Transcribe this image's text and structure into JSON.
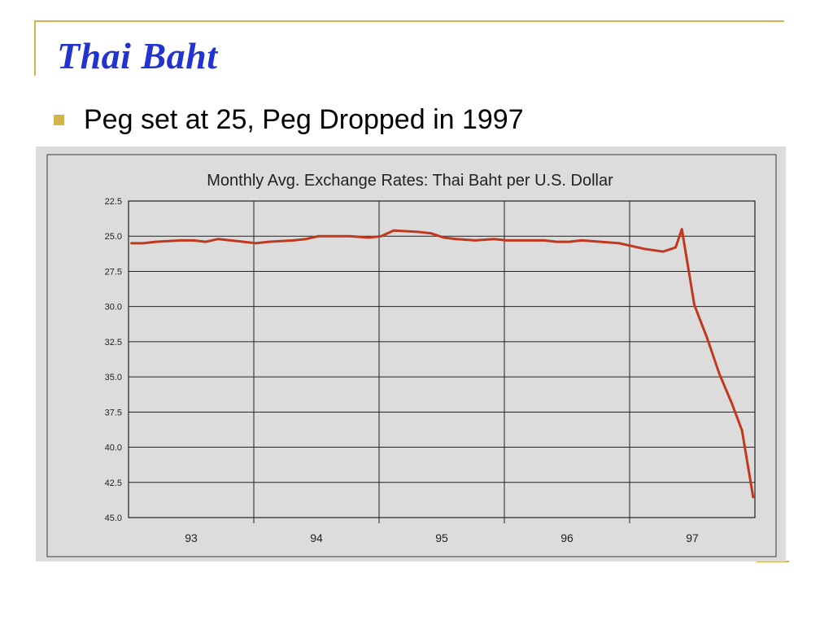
{
  "slide": {
    "title": "Thai Baht",
    "bullet": "Peg set at 25, Peg Dropped in 1997"
  },
  "colors": {
    "accent": "#d4b24c",
    "title": "#2233d0",
    "line": "#c0391e",
    "panel": "#dcdcdc"
  },
  "chart_data": {
    "type": "line",
    "title": "Monthly Avg. Exchange Rates: Thai Baht per U.S. Dollar",
    "xlabel": "",
    "ylabel": "",
    "y_ticks": [
      "22.5",
      "25.0",
      "27.5",
      "30.0",
      "32.5",
      "35.0",
      "37.5",
      "40.0",
      "42.5",
      "45.0"
    ],
    "y_inverted": true,
    "ylim": [
      22.5,
      45.0
    ],
    "x_ticks": [
      "93",
      "94",
      "95",
      "96",
      "97"
    ],
    "xlim": [
      1992.583,
      1997.583
    ],
    "grid": true,
    "series": [
      {
        "x": [
          1992.6,
          1992.7,
          1992.8,
          1993.0,
          1993.1,
          1993.2,
          1993.3,
          1993.5,
          1993.6,
          1993.7,
          1993.9,
          1994.0,
          1994.1,
          1994.2,
          1994.35,
          1994.5,
          1994.6,
          1994.7,
          1994.9,
          1995.0,
          1995.1,
          1995.2,
          1995.35,
          1995.5,
          1995.6,
          1995.7,
          1995.9,
          1996.0,
          1996.1,
          1996.2,
          1996.35,
          1996.5,
          1996.6,
          1996.7,
          1996.85,
          1996.95,
          1997.0,
          1997.1,
          1997.2,
          1997.3,
          1997.4,
          1997.48,
          1997.57
        ],
        "y": [
          25.5,
          25.5,
          25.4,
          25.3,
          25.3,
          25.4,
          25.2,
          25.4,
          25.5,
          25.4,
          25.3,
          25.2,
          25.0,
          25.0,
          25.0,
          25.1,
          25.0,
          24.6,
          24.7,
          24.8,
          25.1,
          25.2,
          25.3,
          25.2,
          25.3,
          25.3,
          25.3,
          25.4,
          25.4,
          25.3,
          25.4,
          25.5,
          25.7,
          25.9,
          26.1,
          25.8,
          24.5,
          29.9,
          32.2,
          34.8,
          36.9,
          38.8,
          43.6
        ]
      }
    ]
  }
}
